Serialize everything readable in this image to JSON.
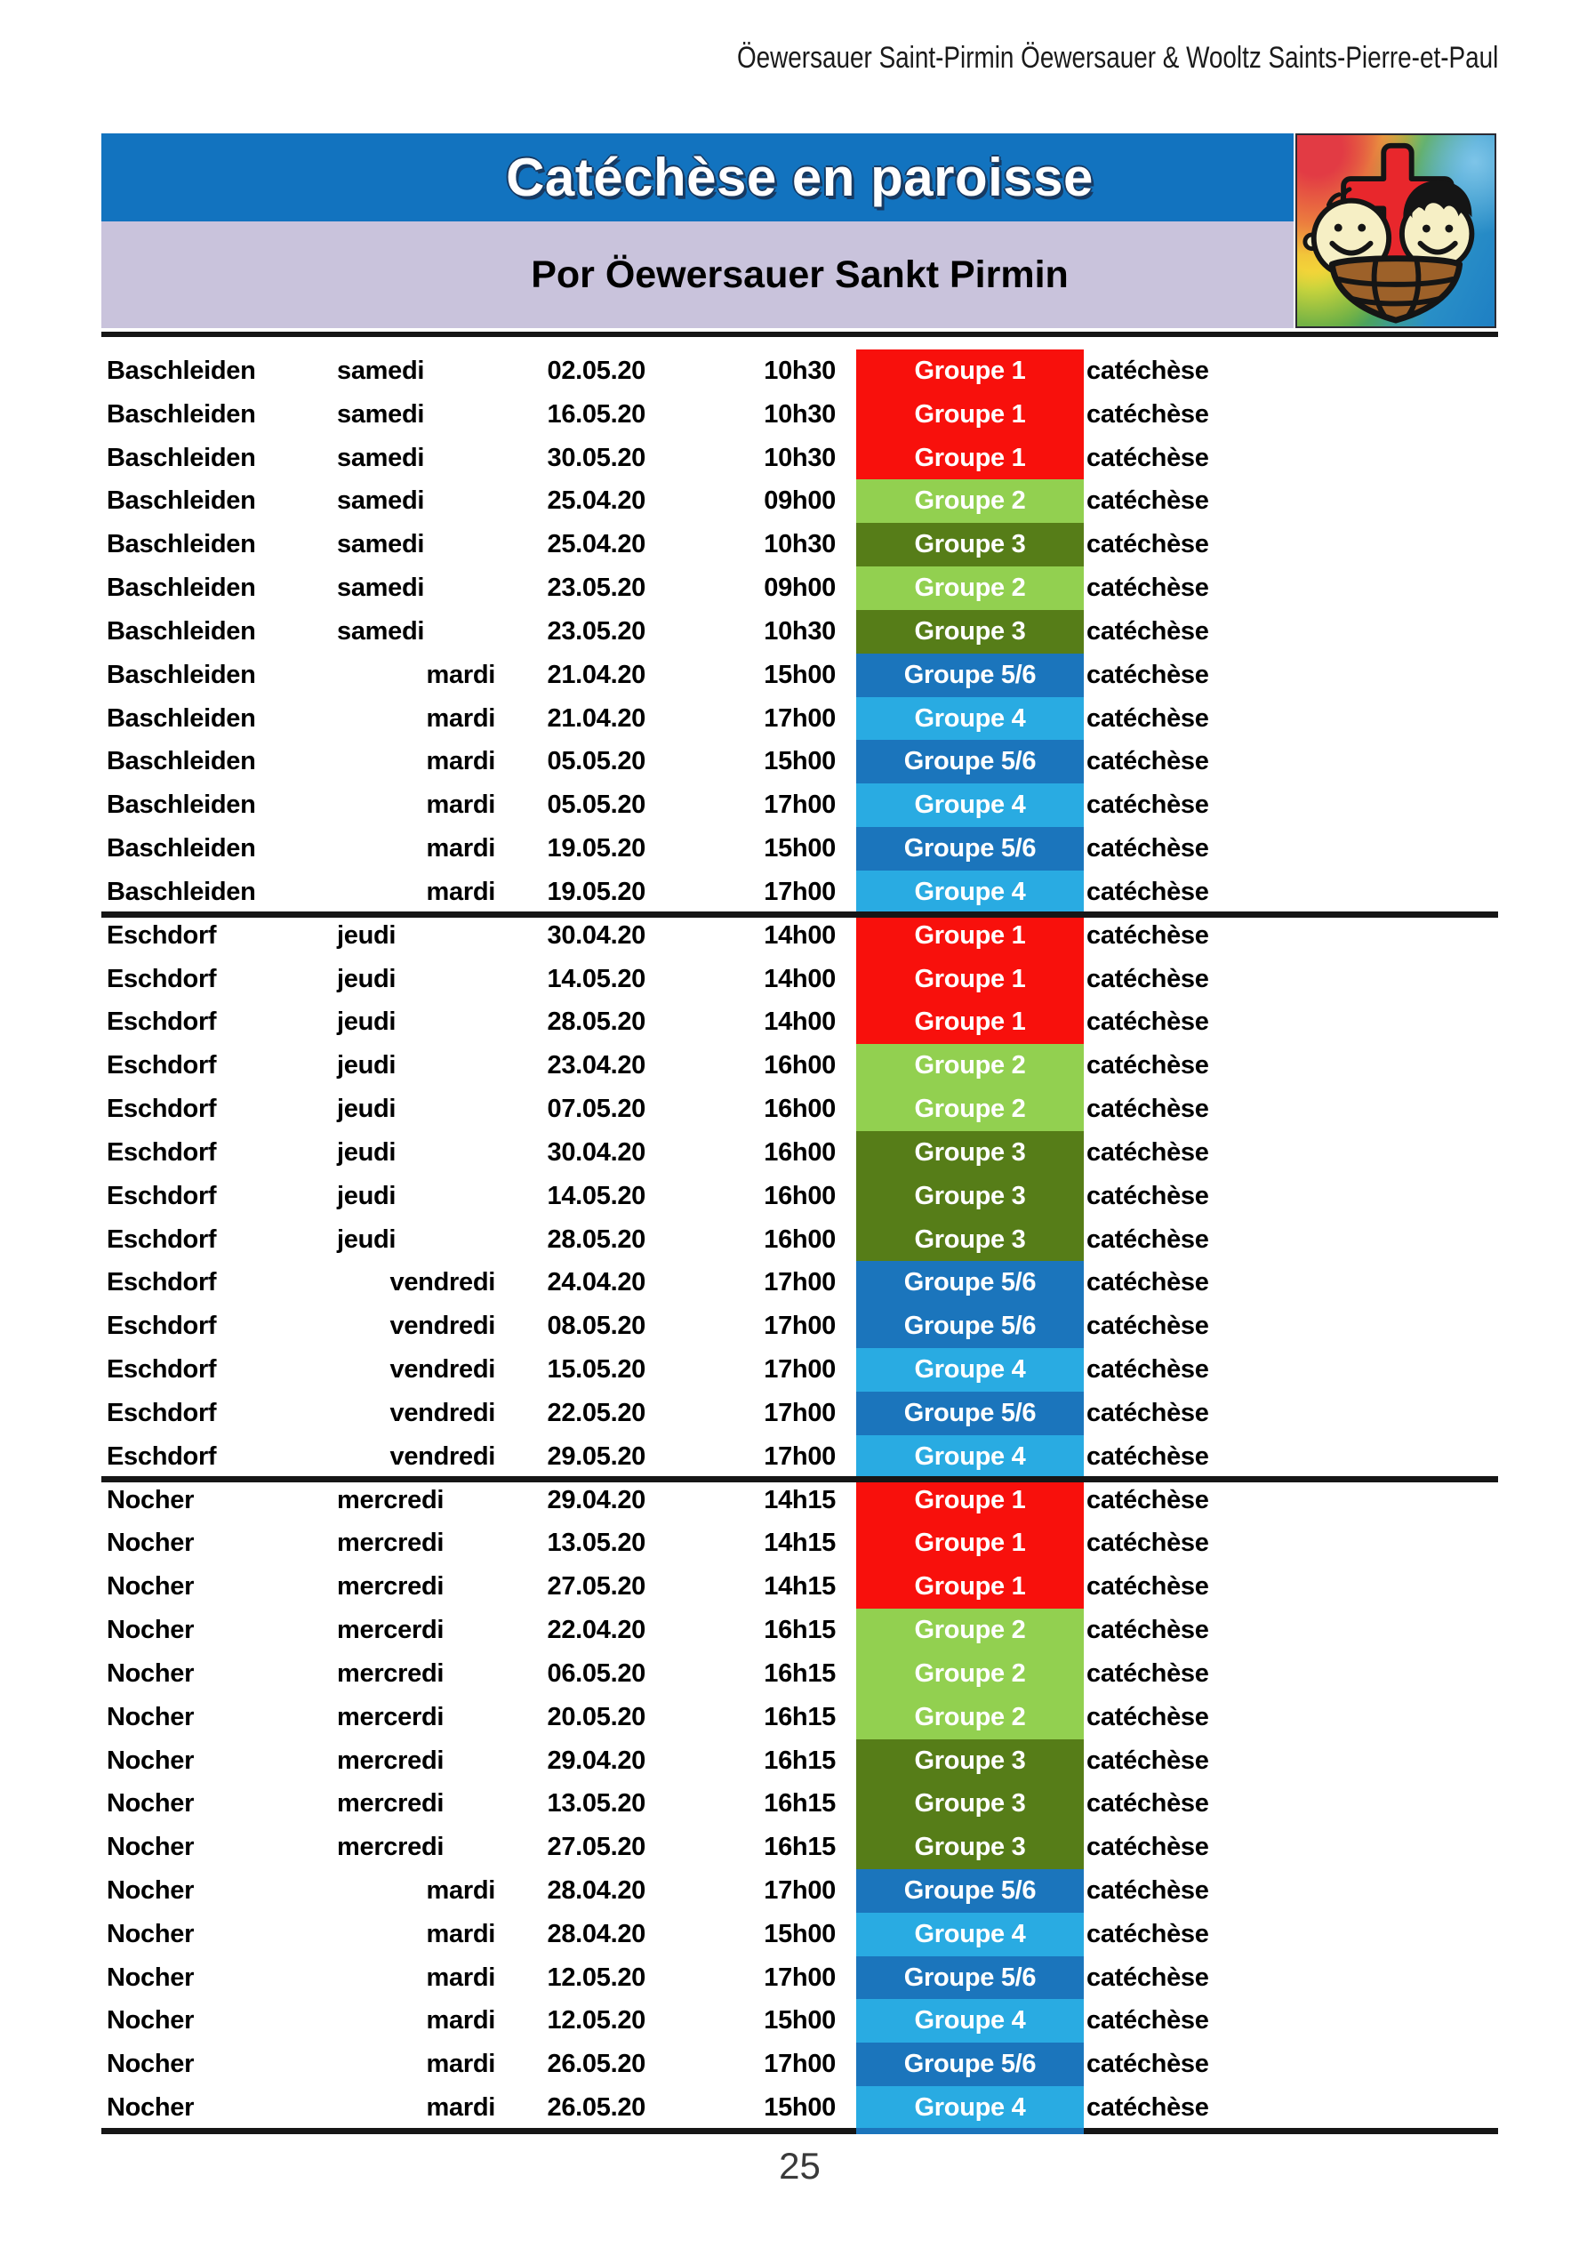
{
  "page": {
    "header_line": "Öewersauer Saint-Pirmin Öewersauer & Wooltz Saints-Pierre-et-Paul",
    "title": "Catéchèse en paroisse",
    "subtitle": "Por Öewersauer Sankt Pirmin",
    "page_number": "25"
  },
  "colors": {
    "banner_blue": "#1273BF",
    "banner_lavender": "#C9C3DC",
    "g1": "#F8100C",
    "g2": "#92D050",
    "g3": "#567D18",
    "g4": "#29ABE2",
    "g56": "#1B75BC",
    "rule": "#161616"
  },
  "logo": {
    "description": "children-ark-cross parish logo on rainbow background",
    "elements": [
      "rainbow-background",
      "red-cross",
      "boy-face",
      "girl-face",
      "brown-ark-boat"
    ]
  },
  "table": {
    "columns": [
      "location",
      "day",
      "date",
      "time",
      "group",
      "activity"
    ],
    "sections": [
      {
        "location": "Baschleiden",
        "rows": [
          {
            "location": "Baschleiden",
            "day": "samedi",
            "day_align": "left",
            "date": "02.05.20",
            "time": "10h30",
            "group": "Groupe 1",
            "group_color": "g1",
            "activity": "catéchèse"
          },
          {
            "location": "Baschleiden",
            "day": "samedi",
            "day_align": "left",
            "date": "16.05.20",
            "time": "10h30",
            "group": "Groupe 1",
            "group_color": "g1",
            "activity": "catéchèse"
          },
          {
            "location": "Baschleiden",
            "day": "samedi",
            "day_align": "left",
            "date": "30.05.20",
            "time": "10h30",
            "group": "Groupe 1",
            "group_color": "g1",
            "activity": "catéchèse"
          },
          {
            "location": "Baschleiden",
            "day": "samedi",
            "day_align": "left",
            "date": "25.04.20",
            "time": "09h00",
            "group": "Groupe 2",
            "group_color": "g2",
            "activity": "catéchèse"
          },
          {
            "location": "Baschleiden",
            "day": "samedi",
            "day_align": "left",
            "date": "25.04.20",
            "time": "10h30",
            "group": "Groupe 3",
            "group_color": "g3",
            "activity": "catéchèse"
          },
          {
            "location": "Baschleiden",
            "day": "samedi",
            "day_align": "left",
            "date": "23.05.20",
            "time": "09h00",
            "group": "Groupe 2",
            "group_color": "g2",
            "activity": "catéchèse"
          },
          {
            "location": "Baschleiden",
            "day": "samedi",
            "day_align": "left",
            "date": "23.05.20",
            "time": "10h30",
            "group": "Groupe 3",
            "group_color": "g3",
            "activity": "catéchèse"
          },
          {
            "location": "Baschleiden",
            "day": "mardi",
            "day_align": "right",
            "date": "21.04.20",
            "time": "15h00",
            "group": "Groupe 5/6",
            "group_color": "g56",
            "activity": "catéchèse"
          },
          {
            "location": "Baschleiden",
            "day": "mardi",
            "day_align": "right",
            "date": "21.04.20",
            "time": "17h00",
            "group": "Groupe 4",
            "group_color": "g4",
            "activity": "catéchèse"
          },
          {
            "location": "Baschleiden",
            "day": "mardi",
            "day_align": "right",
            "date": "05.05.20",
            "time": "15h00",
            "group": "Groupe 5/6",
            "group_color": "g56",
            "activity": "catéchèse"
          },
          {
            "location": "Baschleiden",
            "day": "mardi",
            "day_align": "right",
            "date": "05.05.20",
            "time": "17h00",
            "group": "Groupe 4",
            "group_color": "g4",
            "activity": "catéchèse"
          },
          {
            "location": "Baschleiden",
            "day": "mardi",
            "day_align": "right",
            "date": "19.05.20",
            "time": "15h00",
            "group": "Groupe 5/6",
            "group_color": "g56",
            "activity": "catéchèse"
          },
          {
            "location": "Baschleiden",
            "day": "mardi",
            "day_align": "right",
            "date": "19.05.20",
            "time": "17h00",
            "group": "Groupe 4",
            "group_color": "g4",
            "activity": "catéchèse"
          }
        ]
      },
      {
        "location": "Eschdorf",
        "rows": [
          {
            "location": "Eschdorf",
            "day": "jeudi",
            "day_align": "left",
            "date": "30.04.20",
            "time": "14h00",
            "group": "Groupe 1",
            "group_color": "g1",
            "activity": "catéchèse"
          },
          {
            "location": "Eschdorf",
            "day": "jeudi",
            "day_align": "left",
            "date": "14.05.20",
            "time": "14h00",
            "group": "Groupe 1",
            "group_color": "g1",
            "activity": "catéchèse"
          },
          {
            "location": "Eschdorf",
            "day": "jeudi",
            "day_align": "left",
            "date": "28.05.20",
            "time": "14h00",
            "group": "Groupe 1",
            "group_color": "g1",
            "activity": "catéchèse"
          },
          {
            "location": "Eschdorf",
            "day": "jeudi",
            "day_align": "left",
            "date": "23.04.20",
            "time": "16h00",
            "group": "Groupe 2",
            "group_color": "g2",
            "activity": "catéchèse"
          },
          {
            "location": "Eschdorf",
            "day": "jeudi",
            "day_align": "left",
            "date": "07.05.20",
            "time": "16h00",
            "group": "Groupe 2",
            "group_color": "g2",
            "activity": "catéchèse"
          },
          {
            "location": "Eschdorf",
            "day": "jeudi",
            "day_align": "left",
            "date": "30.04.20",
            "time": "16h00",
            "group": "Groupe 3",
            "group_color": "g3",
            "activity": "catéchèse"
          },
          {
            "location": "Eschdorf",
            "day": "jeudi",
            "day_align": "left",
            "date": "14.05.20",
            "time": "16h00",
            "group": "Groupe 3",
            "group_color": "g3",
            "activity": "catéchèse"
          },
          {
            "location": "Eschdorf",
            "day": "jeudi",
            "day_align": "left",
            "date": "28.05.20",
            "time": "16h00",
            "group": "Groupe 3",
            "group_color": "g3",
            "activity": "catéchèse"
          },
          {
            "location": "Eschdorf",
            "day": "vendredi",
            "day_align": "right",
            "date": "24.04.20",
            "time": "17h00",
            "group": "Groupe 5/6",
            "group_color": "g56",
            "activity": "catéchèse"
          },
          {
            "location": "Eschdorf",
            "day": "vendredi",
            "day_align": "right",
            "date": "08.05.20",
            "time": "17h00",
            "group": "Groupe 5/6",
            "group_color": "g56",
            "activity": "catéchèse"
          },
          {
            "location": "Eschdorf",
            "day": "vendredi",
            "day_align": "right",
            "date": "15.05.20",
            "time": "17h00",
            "group": "Groupe 4",
            "group_color": "g4",
            "activity": "catéchèse"
          },
          {
            "location": "Eschdorf",
            "day": "vendredi",
            "day_align": "right",
            "date": "22.05.20",
            "time": "17h00",
            "group": "Groupe 5/6",
            "group_color": "g56",
            "activity": "catéchèse"
          },
          {
            "location": "Eschdorf",
            "day": "vendredi",
            "day_align": "right",
            "date": "29.05.20",
            "time": "17h00",
            "group": "Groupe 4",
            "group_color": "g4",
            "activity": "catéchèse"
          }
        ]
      },
      {
        "location": "Nocher",
        "rows": [
          {
            "location": "Nocher",
            "day": "mercredi",
            "day_align": "left",
            "date": "29.04.20",
            "time": "14h15",
            "group": "Groupe 1",
            "group_color": "g1",
            "activity": "catéchèse"
          },
          {
            "location": "Nocher",
            "day": "mercredi",
            "day_align": "left",
            "date": "13.05.20",
            "time": "14h15",
            "group": "Groupe 1",
            "group_color": "g1",
            "activity": "catéchèse"
          },
          {
            "location": "Nocher",
            "day": "mercredi",
            "day_align": "left",
            "date": "27.05.20",
            "time": "14h15",
            "group": "Groupe 1",
            "group_color": "g1",
            "activity": "catéchèse"
          },
          {
            "location": "Nocher",
            "day": "mercerdi",
            "day_align": "left",
            "date": "22.04.20",
            "time": "16h15",
            "group": "Groupe 2",
            "group_color": "g2",
            "activity": "catéchèse"
          },
          {
            "location": "Nocher",
            "day": "mercredi",
            "day_align": "left",
            "date": "06.05.20",
            "time": "16h15",
            "group": "Groupe 2",
            "group_color": "g2",
            "activity": "catéchèse"
          },
          {
            "location": "Nocher",
            "day": "mercerdi",
            "day_align": "left",
            "date": "20.05.20",
            "time": "16h15",
            "group": "Groupe 2",
            "group_color": "g2",
            "activity": "catéchèse"
          },
          {
            "location": "Nocher",
            "day": "mercredi",
            "day_align": "left",
            "date": "29.04.20",
            "time": "16h15",
            "group": "Groupe 3",
            "group_color": "g3",
            "activity": "catéchèse"
          },
          {
            "location": "Nocher",
            "day": "mercredi",
            "day_align": "left",
            "date": "13.05.20",
            "time": "16h15",
            "group": "Groupe 3",
            "group_color": "g3",
            "activity": "catéchèse"
          },
          {
            "location": "Nocher",
            "day": "mercredi",
            "day_align": "left",
            "date": "27.05.20",
            "time": "16h15",
            "group": "Groupe 3",
            "group_color": "g3",
            "activity": "catéchèse"
          },
          {
            "location": "Nocher",
            "day": "mardi",
            "day_align": "right",
            "date": "28.04.20",
            "time": "17h00",
            "group": "Groupe 5/6",
            "group_color": "g56",
            "activity": "catéchèse"
          },
          {
            "location": "Nocher",
            "day": "mardi",
            "day_align": "right",
            "date": "28.04.20",
            "time": "15h00",
            "group": "Groupe 4",
            "group_color": "g4",
            "activity": "catéchèse"
          },
          {
            "location": "Nocher",
            "day": "mardi",
            "day_align": "right",
            "date": "12.05.20",
            "time": "17h00",
            "group": "Groupe 5/6",
            "group_color": "g56",
            "activity": "catéchèse"
          },
          {
            "location": "Nocher",
            "day": "mardi",
            "day_align": "right",
            "date": "12.05.20",
            "time": "15h00",
            "group": "Groupe 4",
            "group_color": "g4",
            "activity": "catéchèse"
          },
          {
            "location": "Nocher",
            "day": "mardi",
            "day_align": "right",
            "date": "26.05.20",
            "time": "17h00",
            "group": "Groupe 5/6",
            "group_color": "g56",
            "activity": "catéchèse"
          },
          {
            "location": "Nocher",
            "day": "mardi",
            "day_align": "right",
            "date": "26.05.20",
            "time": "15h00",
            "group": "Groupe 4",
            "group_color": "g4",
            "activity": "catéchèse"
          }
        ]
      }
    ]
  }
}
